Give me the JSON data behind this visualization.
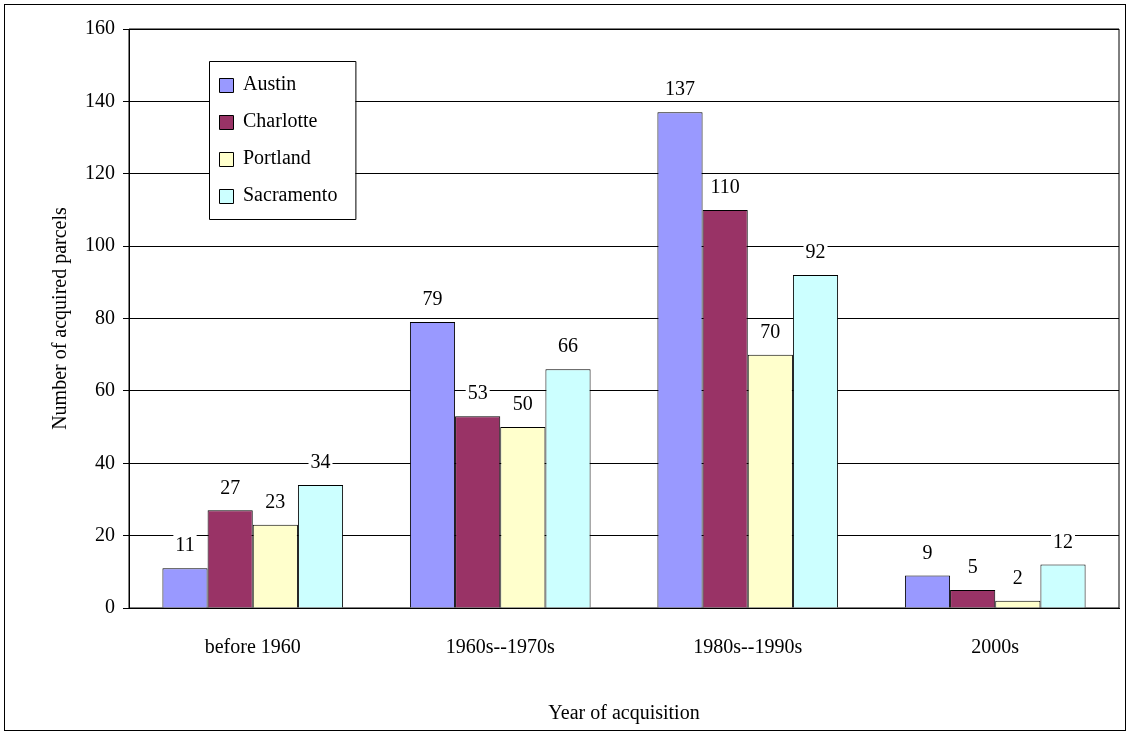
{
  "chart_data": {
    "type": "bar",
    "xlabel": "Year of acquisition",
    "ylabel": "Number of acquired parcels",
    "categories": [
      "before 1960",
      "1960s--1970s",
      "1980s--1990s",
      "2000s"
    ],
    "series": [
      {
        "name": "Austin",
        "color": "#9999ff",
        "values": [
          11,
          79,
          137,
          9
        ]
      },
      {
        "name": "Charlotte",
        "color": "#993366",
        "values": [
          27,
          53,
          110,
          5
        ]
      },
      {
        "name": "Portland",
        "color": "#ffffcc",
        "values": [
          23,
          50,
          70,
          2
        ]
      },
      {
        "name": "Sacramento",
        "color": "#ccffff",
        "values": [
          34,
          66,
          92,
          12
        ]
      }
    ],
    "ylim": [
      0,
      160
    ],
    "yticks": [
      0,
      20,
      40,
      60,
      80,
      100,
      120,
      140,
      160
    ],
    "grid": "y",
    "legend": "top left",
    "data_labels": true
  }
}
